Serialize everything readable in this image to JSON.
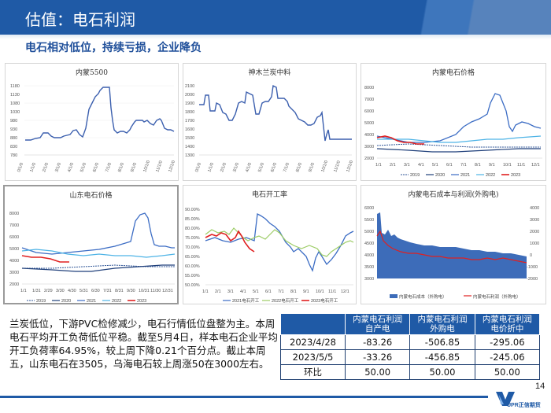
{
  "header": {
    "title": "估值：电石利润"
  },
  "subtitle": "电石相对低位，持续亏损，企业降负",
  "charts": {
    "c1": {
      "title": "内蒙5500",
      "yticks": [
        "1180",
        "1130",
        "1080",
        "1030",
        "980",
        "930",
        "880",
        "830",
        "780",
        "730"
      ],
      "xticks": [
        "0/1/0",
        "1/1/0",
        "2/1/0",
        "3/1/0",
        "4/1/0",
        "5/1/0",
        "6/1/0",
        "7/1/0",
        "8/1/0",
        "9/1/0",
        "10/1/0",
        "11/1/0",
        "12/1/0"
      ]
    },
    "c2": {
      "title": "神木兰炭中料",
      "yticks": [
        "2100",
        "2000",
        "1900",
        "1800",
        "1700",
        "1600",
        "1500",
        "1400",
        "1300",
        "1200"
      ],
      "xticks": [
        "0/1/0",
        "1/1/0",
        "2/1/0",
        "3/1/0",
        "4/1/0",
        "5/1/0",
        "6/1/0",
        "7/1/0",
        "8/1/0",
        "9/1/0",
        "10/1/0",
        "11/1/0",
        "12/1/0"
      ]
    },
    "c3": {
      "title": "内蒙电石价格",
      "yticks": [
        "8000",
        "7000",
        "6000",
        "5000",
        "4000",
        "3000",
        "2000"
      ],
      "xticks": [
        "1/1",
        "2/1",
        "3/1",
        "4/1",
        "5/1",
        "6/1",
        "7/1",
        "8/1",
        "9/1",
        "10/1",
        "11/1",
        "12/1"
      ],
      "legend": [
        "2019",
        "2020",
        "2021",
        "2022",
        "2023"
      ]
    },
    "c4": {
      "title": "山东电石价格",
      "yticks": [
        "8000",
        "7000",
        "6000",
        "5000",
        "4000",
        "3000",
        "2000"
      ],
      "xticks": [
        "1/1",
        "1/31",
        "2/29",
        "3/30",
        "4/30",
        "5/31",
        "6/30",
        "7/31",
        "8/31",
        "9/30",
        "10/31",
        "11/30",
        "12/31"
      ],
      "legend": [
        "2019",
        "2020",
        "2021",
        "2022",
        "2023"
      ]
    },
    "c5": {
      "title": "电石开工率",
      "yticks": [
        "90.00%",
        "85.00%",
        "80.00%",
        "75.00%",
        "70.00%",
        "65.00%",
        "60.00%",
        "55.00%",
        "50.00%"
      ],
      "xticks": [
        "1/1",
        "2/1",
        "3/1",
        "4/1",
        "5/1",
        "6/1",
        "7/1",
        "8/1",
        "9/1",
        "10/1",
        "11/1",
        "12/1"
      ],
      "legend": [
        "2021电石开工",
        "2022电石开工",
        "2023电石开工"
      ]
    },
    "c6": {
      "title": "内蒙电石成本与利润(外购电)",
      "yticks_left": [
        "6000",
        "5500",
        "5000",
        "4500",
        "4000",
        "3500",
        "3000"
      ],
      "yticks_right": [
        "4000",
        "3000",
        "2000",
        "1000",
        "0",
        "-1000",
        "-2000"
      ],
      "legend": [
        "内蒙电石成本（外购电）",
        "内蒙电石利润（外购电）"
      ]
    }
  },
  "commentary": "兰炭低位，下游PVC检修减少，电石行情低位盘整为主。本周电石平均开工负荷低位平稳。截至5月4日，样本电石企业平均开工负荷率64.95%，较上周下降0.21个百分点。截止本周五，山东电石在3505，乌海电石较上周涨50在3000左右。",
  "table": {
    "headers": [
      {
        "line1": "内蒙电石利润",
        "line2": "自产电"
      },
      {
        "line1": "内蒙电石利润",
        "line2": "外购电"
      },
      {
        "line1": "内蒙电石利润",
        "line2": "电价折中"
      }
    ],
    "rows": [
      {
        "label": "2023/4/28",
        "values": [
          "-83.26",
          "-506.85",
          "-295.06"
        ]
      },
      {
        "label": "2023/5/5",
        "values": [
          "-33.26",
          "-456.85",
          "-245.06"
        ]
      },
      {
        "label": "环比",
        "values": [
          "50.00",
          "50.00",
          "50.00"
        ]
      }
    ]
  },
  "page_number": "14",
  "logo_text": "UPR正信期货",
  "colors": {
    "brand_blue": "#1f5aa6",
    "series_dark_blue": "#2f5597",
    "series_red": "#e02020",
    "series_light_blue": "#4db3e6",
    "series_green": "#9ccc65"
  }
}
